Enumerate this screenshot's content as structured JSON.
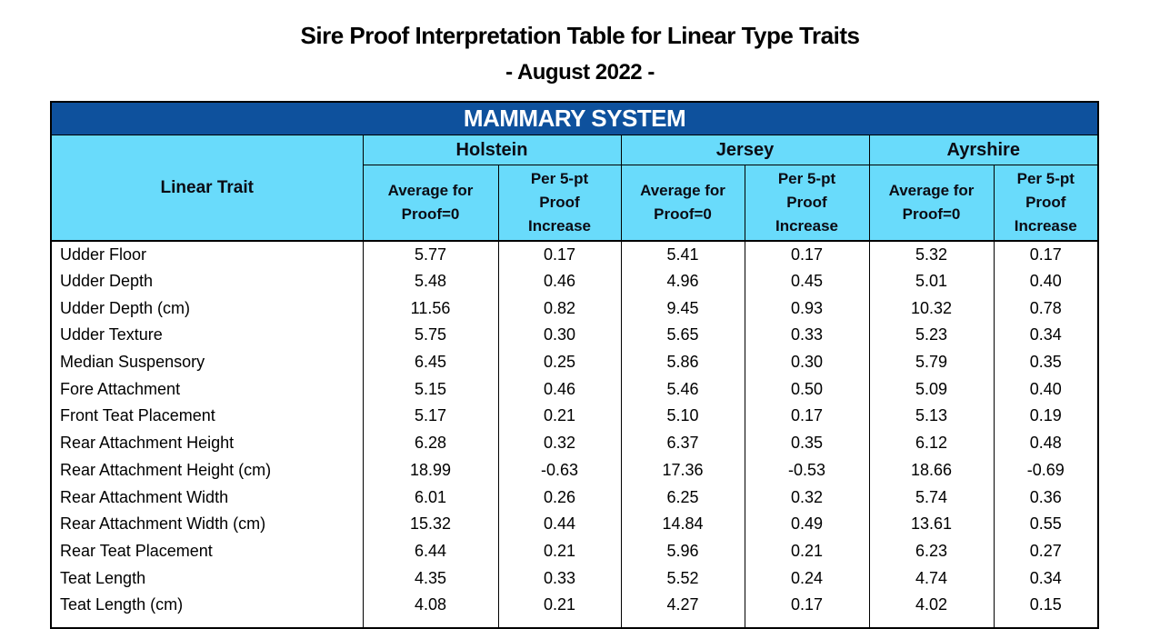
{
  "title": "Sire Proof Interpretation Table for Linear Type Traits",
  "subtitle": "- August 2022 -",
  "section_header": "MAMMARY SYSTEM",
  "colors": {
    "banner_bg": "#0E519D",
    "banner_text": "#FFFFFF",
    "header_bg": "#69DBFB",
    "border": "#000000",
    "body_text": "#000000"
  },
  "table": {
    "trait_header": "Linear Trait",
    "breeds": [
      "Holstein",
      "Jersey",
      "Ayrshire"
    ],
    "sub_headers": [
      "Average for\nProof=0",
      "Per 5-pt\nProof\nIncrease"
    ],
    "rows": [
      {
        "trait": "Udder Floor",
        "values": [
          "5.77",
          "0.17",
          "5.41",
          "0.17",
          "5.32",
          "0.17"
        ]
      },
      {
        "trait": "Udder Depth",
        "values": [
          "5.48",
          "0.46",
          "4.96",
          "0.45",
          "5.01",
          "0.40"
        ]
      },
      {
        "trait": "Udder Depth (cm)",
        "values": [
          "11.56",
          "0.82",
          "9.45",
          "0.93",
          "10.32",
          "0.78"
        ]
      },
      {
        "trait": "Udder Texture",
        "values": [
          "5.75",
          "0.30",
          "5.65",
          "0.33",
          "5.23",
          "0.34"
        ]
      },
      {
        "trait": "Median Suspensory",
        "values": [
          "6.45",
          "0.25",
          "5.86",
          "0.30",
          "5.79",
          "0.35"
        ]
      },
      {
        "trait": "Fore Attachment",
        "values": [
          "5.15",
          "0.46",
          "5.46",
          "0.50",
          "5.09",
          "0.40"
        ]
      },
      {
        "trait": "Front Teat Placement",
        "values": [
          "5.17",
          "0.21",
          "5.10",
          "0.17",
          "5.13",
          "0.19"
        ]
      },
      {
        "trait": "Rear Attachment Height",
        "values": [
          "6.28",
          "0.32",
          "6.37",
          "0.35",
          "6.12",
          "0.48"
        ]
      },
      {
        "trait": "Rear Attachment Height (cm)",
        "values": [
          "18.99",
          "-0.63",
          "17.36",
          "-0.53",
          "18.66",
          "-0.69"
        ]
      },
      {
        "trait": "Rear Attachment Width",
        "values": [
          "6.01",
          "0.26",
          "6.25",
          "0.32",
          "5.74",
          "0.36"
        ]
      },
      {
        "trait": "Rear Attachment Width (cm)",
        "values": [
          "15.32",
          "0.44",
          "14.84",
          "0.49",
          "13.61",
          "0.55"
        ]
      },
      {
        "trait": "Rear Teat Placement",
        "values": [
          "6.44",
          "0.21",
          "5.96",
          "0.21",
          "6.23",
          "0.27"
        ]
      },
      {
        "trait": "Teat Length",
        "values": [
          "4.35",
          "0.33",
          "5.52",
          "0.24",
          "4.74",
          "0.34"
        ]
      },
      {
        "trait": "Teat Length (cm)",
        "values": [
          "4.08",
          "0.21",
          "4.27",
          "0.17",
          "4.02",
          "0.15"
        ]
      }
    ]
  }
}
